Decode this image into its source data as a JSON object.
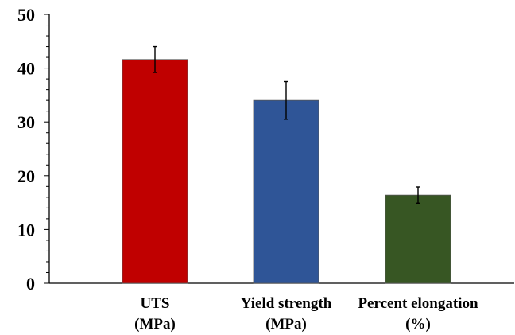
{
  "chart_data": {
    "type": "bar",
    "categories": [
      [
        "UTS",
        "(MPa)"
      ],
      [
        "Yield strength",
        "(MPa)"
      ],
      [
        "Percent elongation",
        "(%)"
      ]
    ],
    "values": [
      41.6,
      34.0,
      16.4
    ],
    "error": [
      2.4,
      3.5,
      1.5
    ],
    "colors": [
      "#c00000",
      "#2f5597",
      "#375623"
    ],
    "ylim": [
      0,
      50
    ],
    "yticks": [
      0,
      10,
      20,
      30,
      40,
      50
    ],
    "minor_step": 2,
    "grid": false,
    "title": "",
    "xlabel": "",
    "ylabel": ""
  }
}
